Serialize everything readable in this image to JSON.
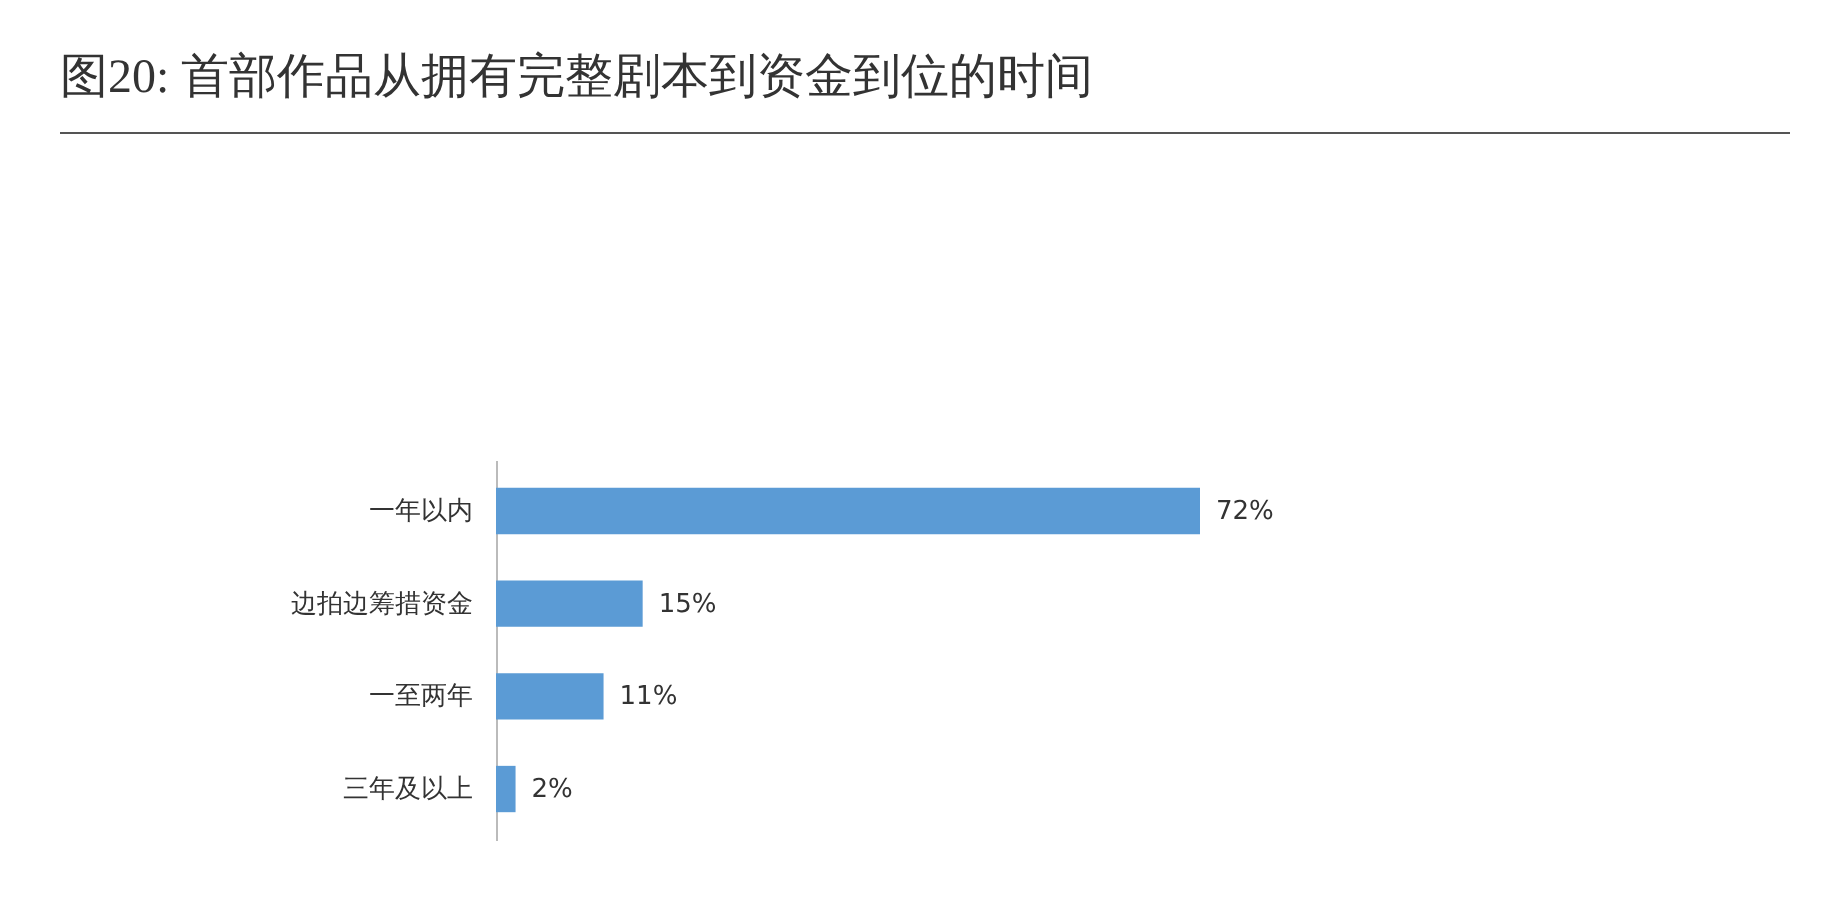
{
  "chart_data": {
    "type": "bar",
    "orientation": "horizontal",
    "title": "图20: 首部作品从拥有完整剧本到资金到位的时间",
    "categories": [
      "一年以内",
      "边拍边筹措资金",
      "一至两年",
      "三年及以上"
    ],
    "values": [
      72,
      15,
      11,
      2
    ],
    "color": "#5b9bd5",
    "value_labels": [
      "72%",
      "15%",
      "11%",
      "2%"
    ]
  }
}
